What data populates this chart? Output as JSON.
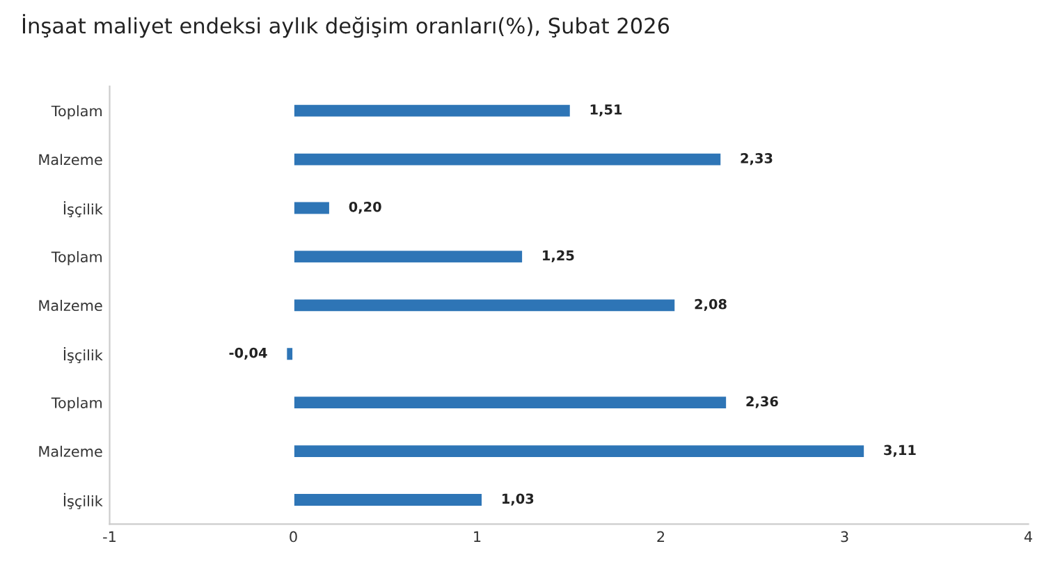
{
  "chart_data": {
    "type": "bar",
    "orientation": "horizontal",
    "title": "İnşaat maliyet endeksi aylık değişim oranları(%), Şubat 2026",
    "categories": [
      "Toplam",
      "Malzeme",
      "İşçilik",
      "Toplam",
      "Malzeme",
      "İşçilik",
      "Toplam",
      "Malzeme",
      "İşçilik"
    ],
    "values": [
      1.51,
      2.33,
      0.2,
      1.25,
      2.08,
      -0.04,
      2.36,
      3.11,
      1.03
    ],
    "value_labels": [
      "1,51",
      "2,33",
      "0,20",
      "1,25",
      "2,08",
      "-0,04",
      "2,36",
      "3,11",
      "1,03"
    ],
    "color": "#2e75b6",
    "xlim": [
      -1,
      4
    ],
    "xticks": [
      -1,
      0,
      1,
      2,
      3,
      4
    ],
    "grid": false,
    "legend": false
  }
}
